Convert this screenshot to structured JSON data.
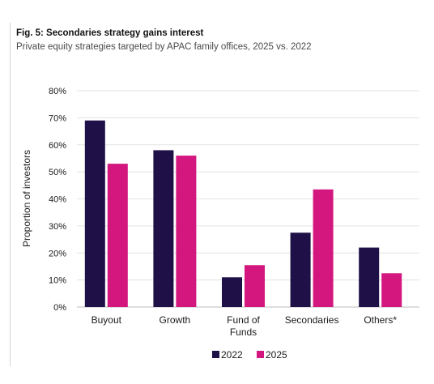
{
  "header": {
    "title": "Fig. 5: Secondaries strategy gains interest",
    "subtitle": "Private equity strategies targeted by APAC family offices, 2025 vs. 2022"
  },
  "chart_data": {
    "type": "bar",
    "title": "Fig. 5: Secondaries strategy gains interest",
    "subtitle": "Private equity strategies targeted by APAC family offices, 2025 vs. 2022",
    "categories": [
      [
        "Buyout"
      ],
      [
        "Growth"
      ],
      [
        "Fund of",
        "Funds"
      ],
      [
        "Secondaries"
      ],
      [
        "Others*"
      ]
    ],
    "series": [
      {
        "name": "2022",
        "color": "#1f1147",
        "values": [
          69,
          58,
          11,
          27.5,
          22
        ]
      },
      {
        "name": "2025",
        "color": "#d4177f",
        "values": [
          53,
          56,
          15.5,
          43.5,
          12.5
        ]
      }
    ],
    "xlabel": "",
    "ylabel": "Proportion of investors",
    "ylim": [
      0,
      80
    ],
    "yticks": [
      "0%",
      "10%",
      "20%",
      "30%",
      "40%",
      "50%",
      "60%",
      "70%",
      "80%"
    ],
    "grid": true,
    "legend": "bottom-center"
  }
}
